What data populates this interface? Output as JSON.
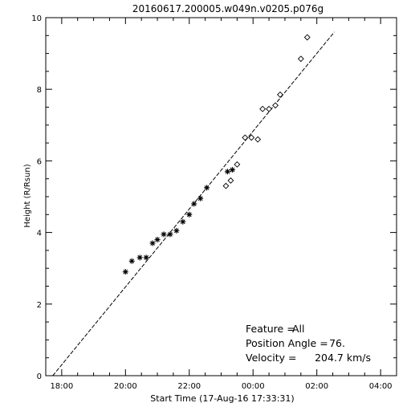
{
  "chart_data": {
    "type": "scatter",
    "title": "20160617.200005.w049n.v0205.p076g",
    "xlabel": "Start Time (17-Aug-16 17:33:31)",
    "ylabel": "Height (R/Rsun)",
    "x_unit": "hours of day",
    "xlim": [
      17.5,
      28.5
    ],
    "ylim": [
      0,
      10
    ],
    "x_ticks": [
      {
        "value": 18,
        "label": "18:00"
      },
      {
        "value": 20,
        "label": "20:00"
      },
      {
        "value": 22,
        "label": "22:00"
      },
      {
        "value": 24,
        "label": "00:00"
      },
      {
        "value": 26,
        "label": "02:00"
      },
      {
        "value": 28,
        "label": "04:00"
      }
    ],
    "y_ticks": [
      {
        "value": 0,
        "label": "0"
      },
      {
        "value": 2,
        "label": "2"
      },
      {
        "value": 4,
        "label": "4"
      },
      {
        "value": 6,
        "label": "6"
      },
      {
        "value": 8,
        "label": "8"
      },
      {
        "value": 10,
        "label": "10"
      }
    ],
    "series": [
      {
        "marker": "asterisk",
        "x": [
          20.0,
          20.2,
          20.45,
          20.65,
          20.85,
          21.0,
          21.2,
          21.4,
          21.6,
          21.8,
          22.0,
          22.15,
          22.35,
          22.55,
          23.2,
          23.35
        ],
        "y": [
          2.9,
          3.2,
          3.3,
          3.3,
          3.7,
          3.8,
          3.95,
          3.95,
          4.05,
          4.3,
          4.5,
          4.8,
          4.95,
          5.25,
          5.7,
          5.75
        ]
      },
      {
        "marker": "diamond",
        "x": [
          23.15,
          23.3,
          23.5,
          23.75,
          23.95,
          24.15,
          24.3,
          24.5,
          24.7,
          24.85,
          25.5,
          25.7
        ],
        "y": [
          5.3,
          5.45,
          5.9,
          6.65,
          6.65,
          6.6,
          7.45,
          7.45,
          7.55,
          7.85,
          8.85,
          9.45
        ]
      },
      {
        "marker": "none",
        "style": "dashed",
        "fit": true,
        "x": [
          17.72,
          26.55
        ],
        "y": [
          0.0,
          9.6
        ]
      }
    ],
    "annotations": [
      {
        "label": "Feature =",
        "value": "All"
      },
      {
        "label": "Position Angle =",
        "value": "76."
      },
      {
        "label": "Velocity =",
        "value": "204.7 km/s"
      }
    ]
  }
}
